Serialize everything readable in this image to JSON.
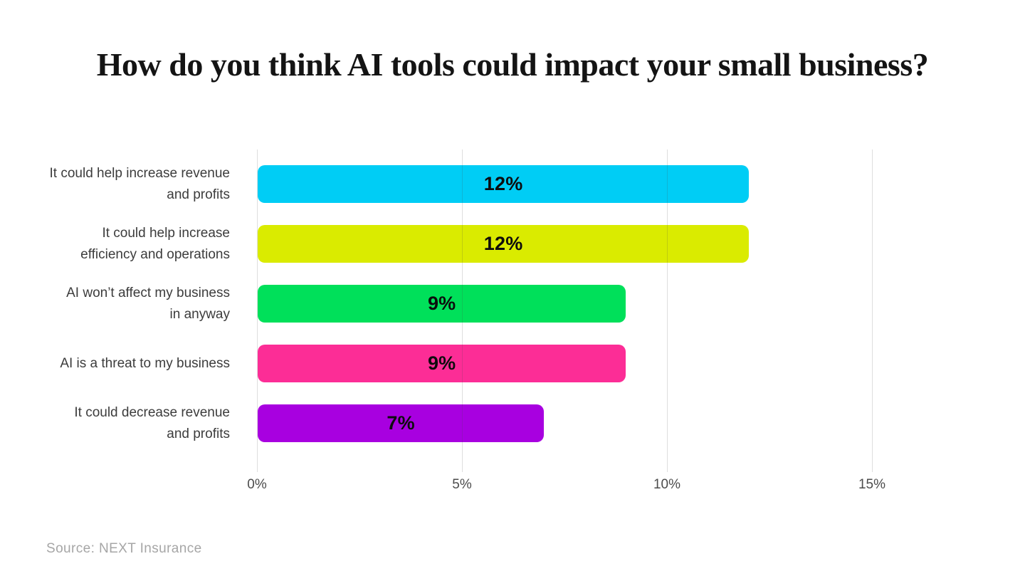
{
  "chart_data": {
    "type": "bar",
    "orientation": "horizontal",
    "title": "How do you think AI tools could impact your small business?",
    "categories": [
      "It could help increase revenue\nand profits",
      "It could help increase\nefficiency and operations",
      "AI won’t affect my business\nin anyway",
      "AI is a threat to my business",
      "It could decrease revenue\nand profits"
    ],
    "values": [
      12,
      12,
      9,
      9,
      7
    ],
    "value_labels": [
      "12%",
      "12%",
      "9%",
      "9%",
      "7%"
    ],
    "bar_colors": [
      "#00cdf5",
      "#daeb00",
      "#00e05a",
      "#fc2d96",
      "#a800e0"
    ],
    "x_ticks": [
      {
        "value": 0,
        "label": "0%"
      },
      {
        "value": 5,
        "label": "5%"
      },
      {
        "value": 10,
        "label": "10%"
      },
      {
        "value": 15,
        "label": "15%"
      }
    ],
    "xlim": [
      0,
      17.5
    ],
    "xlabel": "",
    "ylabel": "",
    "grid": "vertical gridlines at ticks, drawn over bars",
    "legend": "none",
    "source": "Source: NEXT Insurance",
    "colors": {
      "background": "#ffffff",
      "grid": "#d9d9d9",
      "title_text": "#141414",
      "category_text": "#3c3c3c",
      "tick_text": "#4c4c4c",
      "value_text": "#0d0d0d",
      "source_text": "#a6a6a6"
    }
  }
}
